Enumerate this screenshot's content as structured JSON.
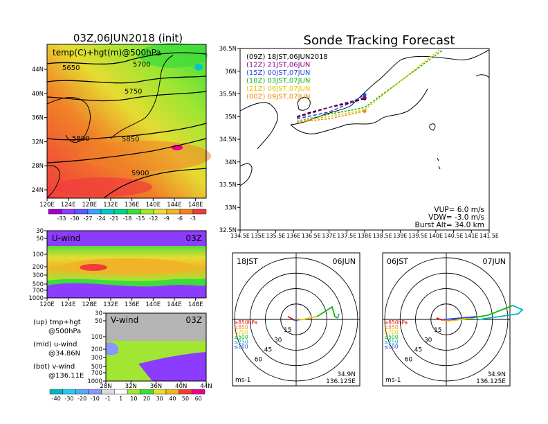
{
  "chart_data": [
    {
      "type": "heatmap",
      "title": "03Z,06JUN2018 (init)",
      "subtitle": "temp(C)+hgt(m)@500hPa",
      "x_ticks": [
        "120E",
        "124E",
        "128E",
        "132E",
        "136E",
        "140E",
        "144E",
        "148E"
      ],
      "y_ticks": [
        "24N",
        "28N",
        "32N",
        "36N",
        "40N",
        "44N"
      ],
      "contour_labels": [
        "5650",
        "5700",
        "5750",
        "5800",
        "5850",
        "5900"
      ],
      "colorbar_ticks": [
        "-33",
        "-30",
        "-27",
        "-24",
        "-21",
        "-18",
        "-15",
        "-12",
        "-9",
        "-6",
        "-3"
      ],
      "colorbar_colors": [
        "#a000c8",
        "#8c3cff",
        "#5a5aff",
        "#3ca0ff",
        "#00c8c8",
        "#00d28c",
        "#3cdc3c",
        "#a0e632",
        "#e6dc32",
        "#f0b428",
        "#f08228",
        "#f03c3c"
      ]
    },
    {
      "type": "heatmap",
      "title": "U-wind",
      "time_label": "03Z",
      "x_ticks": [
        "120E",
        "124E",
        "128E",
        "132E",
        "136E",
        "140E",
        "144E",
        "148E"
      ],
      "y_ticks": [
        "30",
        "50",
        "100",
        "200",
        "300",
        "500",
        "700",
        "1000"
      ]
    },
    {
      "type": "heatmap",
      "title": "V-wind",
      "time_label": "03Z",
      "x_ticks": [
        "28N",
        "32N",
        "36N",
        "40N",
        "44N"
      ],
      "y_ticks": [
        "30",
        "50",
        "100",
        "200",
        "300",
        "500",
        "700",
        "1000"
      ],
      "colorbar_ticks": [
        "-40",
        "-30",
        "-20",
        "-10",
        "-1",
        "1",
        "10",
        "20",
        "30",
        "40",
        "50",
        "60"
      ],
      "colorbar_colors": [
        "#00b4c8",
        "#28c8f0",
        "#50aaff",
        "#8c96ff",
        "#dcdcdc",
        "#ffffff",
        "#a0e632",
        "#3cdc3c",
        "#e6dc32",
        "#f0b428",
        "#f03c3c",
        "#e6008c"
      ]
    },
    {
      "type": "line",
      "title": "Sonde Tracking Forecast",
      "x_ticks": [
        "134.5E",
        "135E",
        "135.5E",
        "136E",
        "136.5E",
        "137E",
        "137.5E",
        "138E",
        "138.5E",
        "139E",
        "139.5E",
        "140E",
        "140.5E",
        "141E",
        "141.5E"
      ],
      "y_ticks": [
        "32.5N",
        "33N",
        "33.5N",
        "34N",
        "34.5N",
        "35N",
        "35.5N",
        "36N",
        "36.5N"
      ],
      "xlim": [
        134.5,
        141.5
      ],
      "ylim": [
        32.5,
        36.5
      ],
      "legend": [
        {
          "label": "(09Z)  18JST,06JUN2018",
          "color": "#000000"
        },
        {
          "label": "(12Z)  21JST,06JUN",
          "color": "#8c008c"
        },
        {
          "label": "(15Z)  00JST,07JUN",
          "color": "#2846e6"
        },
        {
          "label": "(18Z)  03JST,07JUN",
          "color": "#14b414"
        },
        {
          "label": "(21Z)  06JST,07JUN",
          "color": "#e6c800"
        },
        {
          "label": "(00Z)  09JST,07JUN",
          "color": "#f08c14"
        }
      ],
      "series": [
        {
          "name": "(09Z)  18JST,06JUN2018",
          "x": [
            136.1,
            136.5,
            137.0,
            137.6,
            138.0
          ],
          "y": [
            35.0,
            35.1,
            35.2,
            35.3,
            35.4
          ]
        },
        {
          "name": "(12Z)  21JST,06JUN",
          "x": [
            136.1,
            136.6,
            137.2,
            137.7,
            138.0
          ],
          "y": [
            34.98,
            35.1,
            35.25,
            35.35,
            35.42
          ]
        },
        {
          "name": "(15Z)  00JST,07JUN",
          "x": [
            136.1,
            137.0,
            137.6,
            138.0
          ],
          "y": [
            34.95,
            35.1,
            35.3,
            35.48
          ]
        },
        {
          "name": "(18Z)  03JST,07JUN",
          "x": [
            136.1,
            137.0,
            138.0,
            140.2
          ],
          "y": [
            34.9,
            35.05,
            35.2,
            36.95
          ]
        },
        {
          "name": "(21Z)  06JST,07JUN",
          "x": [
            136.1,
            137.0,
            138.0,
            140.1
          ],
          "y": [
            34.9,
            35.0,
            35.15,
            36.9
          ]
        },
        {
          "name": "(00Z)  09JST,07JUN",
          "x": [
            136.1,
            137.0,
            138.0
          ],
          "y": [
            34.88,
            34.95,
            35.12
          ]
        }
      ],
      "annotations": [
        "VUP=  6.0  m/s",
        "VDW= -3.0  m/s",
        "Burst Alt=  34.0  km"
      ]
    },
    {
      "type": "scatter",
      "title": "18JST",
      "date_label": "06JUN",
      "ring_labels": [
        "15",
        "30",
        "45",
        "60"
      ],
      "level_legend": [
        "≥850hPa",
        "≤850",
        "≤700",
        "≤500",
        "≤250",
        "≤100"
      ],
      "level_colors": [
        "#e61414",
        "#f08c14",
        "#e6c800",
        "#14b414",
        "#00b4c8",
        "#2846e6"
      ],
      "units": "ms-1",
      "location": [
        "34.9N",
        "136.125E"
      ]
    },
    {
      "type": "scatter",
      "title": "06JST",
      "date_label": "07JUN",
      "ring_labels": [
        "15",
        "30",
        "45",
        "60"
      ],
      "level_legend": [
        "≥850hPa",
        "≤850",
        "≤700",
        "≤500",
        "≤250",
        "≤100"
      ],
      "level_colors": [
        "#e61414",
        "#f08c14",
        "#e6c800",
        "#14b414",
        "#00b4c8",
        "#2846e6"
      ],
      "units": "ms-1",
      "location": [
        "34.9N",
        "136.125E"
      ]
    }
  ],
  "side_text": {
    "up": "(up)  tmp+hgt",
    "up2": "@500hPa",
    "mid": "(mid)  u-wind",
    "mid2": "@34.86N",
    "bot": "(bot)  v-wind",
    "bot2": "@136.11E"
  }
}
